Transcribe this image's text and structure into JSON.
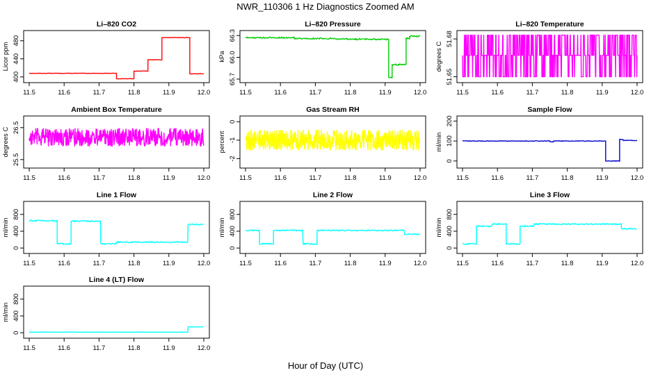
{
  "figure": {
    "title": "NWR_110306  1 Hz Diagnostics Zoomed AM",
    "xlabel": "Hour of Day (UTC)"
  },
  "chart_data": [
    {
      "type": "line",
      "title": "Li–820 CO2",
      "ylabel": "Licor ppm",
      "color": "#ff0000",
      "xlim": [
        11.5,
        12.0
      ],
      "xticks": [
        11.5,
        11.6,
        11.7,
        11.8,
        11.9,
        12.0
      ],
      "ylim": [
        392,
        498
      ],
      "yticks": [
        400,
        440,
        480
      ],
      "noise": 0.4,
      "series": [
        {
          "segments": [
            [
              11.5,
              11.75,
              408
            ],
            [
              11.75,
              11.8,
              396
            ],
            [
              11.8,
              11.84,
              413
            ],
            [
              11.84,
              11.88,
              438
            ],
            [
              11.88,
              11.96,
              487
            ],
            [
              11.96,
              12.0,
              407
            ]
          ]
        }
      ]
    },
    {
      "type": "line",
      "title": "Li–820 Pressure",
      "ylabel": "kPa",
      "color": "#00cc00",
      "xlim": [
        11.5,
        12.0
      ],
      "xticks": [
        11.5,
        11.6,
        11.7,
        11.8,
        11.9,
        12.0
      ],
      "ylim": [
        65.68,
        66.34
      ],
      "yticks": [
        65.7,
        66.0,
        66.3
      ],
      "noise": 0.01,
      "series": [
        {
          "segments": [
            [
              11.5,
              11.64,
              66.27
            ],
            [
              11.64,
              11.76,
              66.26
            ],
            [
              11.76,
              11.91,
              66.25
            ],
            [
              11.91,
              11.92,
              65.72
            ],
            [
              11.92,
              11.96,
              65.9
            ],
            [
              11.96,
              11.97,
              66.26
            ],
            [
              11.97,
              12.0,
              66.29
            ]
          ]
        }
      ]
    },
    {
      "type": "line",
      "title": "Li–820 Temperature",
      "ylabel": "degrees C",
      "color": "#ff00ff",
      "xlim": [
        11.5,
        12.0
      ],
      "xticks": [
        11.5,
        11.6,
        11.7,
        11.8,
        11.9,
        12.0
      ],
      "ylim": [
        51.647,
        51.685
      ],
      "yticks": [
        51.65,
        51.68
      ],
      "style": "toggle",
      "series": [
        {
          "levels": [
            51.65,
            51.667,
            51.683
          ]
        }
      ]
    },
    {
      "type": "line",
      "title": "Ambient Box Temperature",
      "ylabel": "degrees C",
      "color": "#ff00ff",
      "xlim": [
        11.5,
        12.0
      ],
      "xticks": [
        11.5,
        11.6,
        11.7,
        11.8,
        11.9,
        12.0
      ],
      "ylim": [
        25.3,
        26.8
      ],
      "yticks": [
        25.5,
        26.5
      ],
      "noise": 0.28,
      "series": [
        {
          "segments": [
            [
              11.5,
              12.0,
              26.2
            ]
          ]
        }
      ]
    },
    {
      "type": "line",
      "title": "Gas Stream RH",
      "ylabel": "percent",
      "color": "#ffff00",
      "xlim": [
        11.5,
        12.0
      ],
      "xticks": [
        11.5,
        11.6,
        11.7,
        11.8,
        11.9,
        12.0
      ],
      "ylim": [
        -2.4,
        0.2
      ],
      "yticks": [
        -2.0,
        -1.0,
        0.0
      ],
      "noise": 0.55,
      "series": [
        {
          "segments": [
            [
              11.5,
              12.0,
              -1.0
            ]
          ]
        }
      ]
    },
    {
      "type": "line",
      "title": "Sample Flow",
      "ylabel": "ml/min",
      "color": "#0000cc",
      "xlim": [
        11.5,
        12.0
      ],
      "xticks": [
        11.5,
        11.6,
        11.7,
        11.8,
        11.9,
        12.0
      ],
      "ylim": [
        -25,
        215
      ],
      "yticks": [
        0,
        100,
        200
      ],
      "noise": 1.5,
      "series": [
        {
          "segments": [
            [
              11.5,
              11.75,
              100
            ],
            [
              11.75,
              11.76,
              96
            ],
            [
              11.76,
              11.91,
              100
            ],
            [
              11.91,
              11.95,
              0
            ],
            [
              11.95,
              11.96,
              108
            ],
            [
              11.96,
              12.0,
              103
            ]
          ]
        }
      ]
    },
    {
      "type": "line",
      "title": "Line 1 Flow",
      "ylabel": "ml/min",
      "color": "#00ffff",
      "xlim": [
        11.5,
        12.0
      ],
      "xticks": [
        11.5,
        11.6,
        11.7,
        11.8,
        11.9,
        12.0
      ],
      "ylim": [
        -80,
        1060
      ],
      "yticks": [
        0,
        400,
        800
      ],
      "noise": 15,
      "series": [
        {
          "segments": [
            [
              11.5,
              11.58,
              650
            ],
            [
              11.58,
              11.62,
              100
            ],
            [
              11.62,
              11.705,
              640
            ],
            [
              11.705,
              11.75,
              100
            ],
            [
              11.75,
              11.955,
              140
            ],
            [
              11.955,
              12.0,
              560
            ]
          ]
        }
      ]
    },
    {
      "type": "line",
      "title": "Line 2 Flow",
      "ylabel": "ml/min",
      "color": "#00ffff",
      "xlim": [
        11.5,
        12.0
      ],
      "xticks": [
        11.5,
        11.6,
        11.7,
        11.8,
        11.9,
        12.0
      ],
      "ylim": [
        -80,
        1060
      ],
      "yticks": [
        0,
        400,
        800
      ],
      "noise": 15,
      "series": [
        {
          "segments": [
            [
              11.5,
              11.54,
              420
            ],
            [
              11.54,
              11.58,
              100
            ],
            [
              11.58,
              11.665,
              420
            ],
            [
              11.665,
              11.705,
              100
            ],
            [
              11.705,
              11.955,
              420
            ],
            [
              11.955,
              12.0,
              330
            ]
          ]
        }
      ]
    },
    {
      "type": "line",
      "title": "Line 3 Flow",
      "ylabel": "ml/min",
      "color": "#00ffff",
      "xlim": [
        11.5,
        12.0
      ],
      "xticks": [
        11.5,
        11.6,
        11.7,
        11.8,
        11.9,
        12.0
      ],
      "ylim": [
        -80,
        1060
      ],
      "yticks": [
        0,
        400,
        800
      ],
      "noise": 15,
      "series": [
        {
          "segments": [
            [
              11.5,
              11.54,
              100
            ],
            [
              11.54,
              11.585,
              520
            ],
            [
              11.585,
              11.625,
              570
            ],
            [
              11.625,
              11.665,
              100
            ],
            [
              11.665,
              11.705,
              520
            ],
            [
              11.705,
              11.955,
              570
            ],
            [
              11.955,
              12.0,
              460
            ]
          ]
        }
      ]
    },
    {
      "type": "line",
      "title": "Line 4 (LT) Flow",
      "ylabel": "ml/min",
      "color": "#00ffff",
      "xlim": [
        11.5,
        12.0
      ],
      "xticks": [
        11.5,
        11.6,
        11.7,
        11.8,
        11.9,
        12.0
      ],
      "ylim": [
        -80,
        1060
      ],
      "yticks": [
        0,
        400,
        800
      ],
      "noise": 3,
      "series": [
        {
          "segments": [
            [
              11.5,
              11.955,
              15
            ],
            [
              11.955,
              12.0,
              140
            ]
          ]
        }
      ]
    }
  ]
}
